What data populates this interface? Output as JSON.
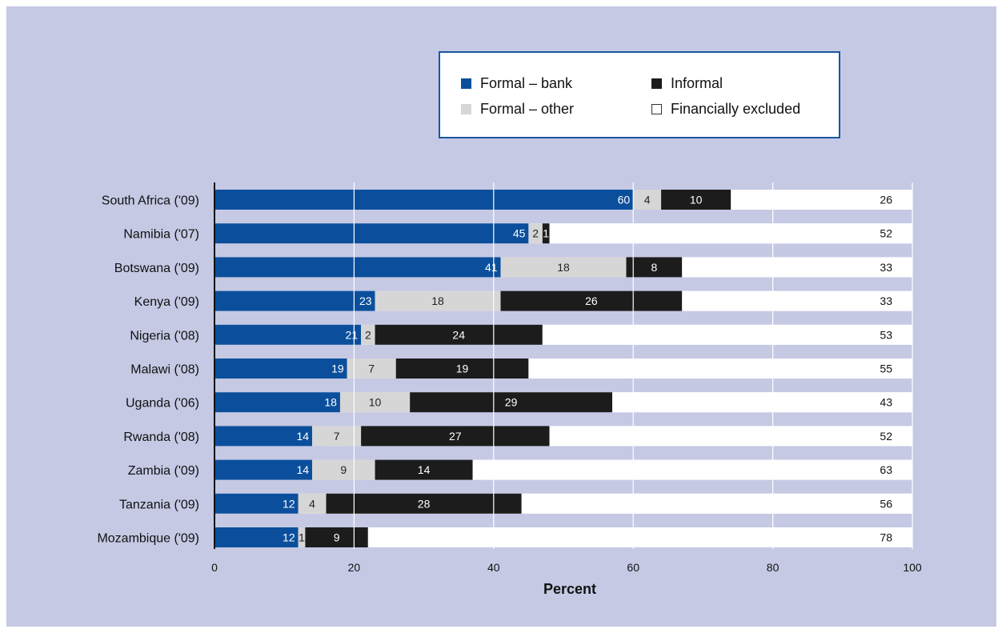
{
  "chart_data": {
    "type": "bar",
    "orientation": "horizontal",
    "stacked": true,
    "title": "",
    "xlabel": "Percent",
    "ylabel": "",
    "xlim": [
      0,
      100
    ],
    "x_ticks": [
      "0",
      "20",
      "40",
      "60",
      "80",
      "100"
    ],
    "grid": true,
    "legend_position": "top-right",
    "categories": [
      "South Africa ('09)",
      "Namibia ('07)",
      "Botswana ('09)",
      "Kenya ('09)",
      "Nigeria ('08)",
      "Malawi ('08)",
      "Uganda ('06)",
      "Rwanda ('08)",
      "Zambia ('09)",
      "Tanzania ('09)",
      "Mozambique ('09)"
    ],
    "series": [
      {
        "name": "Formal – bank",
        "color": "#0b4f9c",
        "label_color": "#ffffff",
        "values": [
          60,
          45,
          41,
          23,
          21,
          19,
          18,
          14,
          14,
          12,
          12
        ]
      },
      {
        "name": "Formal – other",
        "color": "#d6d6d6",
        "label_color": "#222222",
        "values": [
          4,
          2,
          18,
          18,
          2,
          7,
          10,
          7,
          9,
          4,
          1
        ]
      },
      {
        "name": "Informal",
        "color": "#1c1c1c",
        "label_color": "#ffffff",
        "values": [
          10,
          1,
          8,
          26,
          24,
          19,
          29,
          27,
          14,
          28,
          9
        ]
      },
      {
        "name": "Financially excluded",
        "color": "#ffffff",
        "label_color": "#111111",
        "values": [
          26,
          52,
          33,
          33,
          53,
          55,
          43,
          52,
          63,
          56,
          78
        ]
      }
    ]
  },
  "legend": {
    "items": [
      {
        "label": "Formal – bank",
        "color": "#0b4f9c",
        "border": "#0b4f9c"
      },
      {
        "label": "Informal",
        "color": "#1c1c1c",
        "border": "#1c1c1c"
      },
      {
        "label": "Formal – other",
        "color": "#d6d6d6",
        "border": "#d6d6d6"
      },
      {
        "label": "Financially excluded",
        "color": "#ffffff",
        "border": "#333333"
      }
    ]
  },
  "colors": {
    "background": "#c5c9e4",
    "gridline": "#ffffff",
    "legend_border": "#1a56a0"
  }
}
